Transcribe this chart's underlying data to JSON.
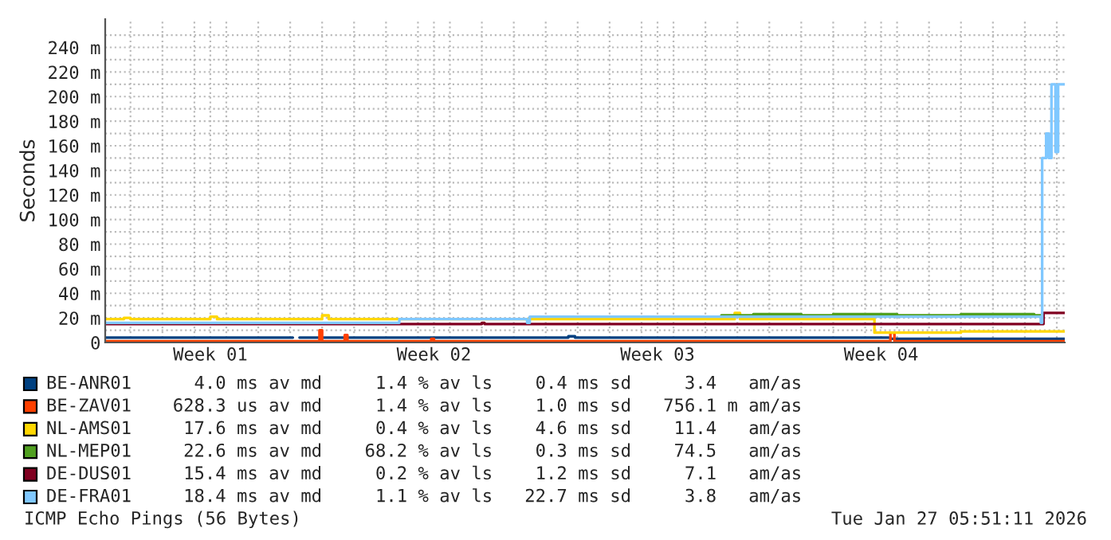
{
  "chart_data": {
    "type": "step",
    "ylabel": "Seconds",
    "xlim": [
      "2025-12-28T05:00",
      "2026-01-27T06:00"
    ],
    "ylim": [
      0,
      263
    ],
    "xticks": [
      {
        "value": "2025-12-31T12:00",
        "label": "Week 01"
      },
      {
        "value": "2026-01-07T12:00",
        "label": "Week 02"
      },
      {
        "value": "2026-01-14T12:00",
        "label": "Week 03"
      },
      {
        "value": "2026-01-21T12:00",
        "label": "Week 04"
      },
      {
        "value": "2025-12-29",
        "label": null
      },
      {
        "value": "2025-12-30",
        "label": null
      },
      {
        "value": "2025-12-31",
        "label": null
      },
      {
        "value": "2026-01-01",
        "label": null
      },
      {
        "value": "2026-01-02",
        "label": null
      },
      {
        "value": "2026-01-03",
        "label": null
      },
      {
        "value": "2026-01-04",
        "label": null
      },
      {
        "value": "2026-01-05",
        "label": null
      },
      {
        "value": "2026-01-06",
        "label": null
      },
      {
        "value": "2026-01-07",
        "label": null
      },
      {
        "value": "2026-01-08",
        "label": null
      },
      {
        "value": "2026-01-09",
        "label": null
      },
      {
        "value": "2026-01-10",
        "label": null
      },
      {
        "value": "2026-01-11",
        "label": null
      },
      {
        "value": "2026-01-12",
        "label": null
      },
      {
        "value": "2026-01-13",
        "label": null
      },
      {
        "value": "2026-01-14",
        "label": null
      },
      {
        "value": "2026-01-15",
        "label": null
      },
      {
        "value": "2026-01-16",
        "label": null
      },
      {
        "value": "2026-01-17",
        "label": null
      },
      {
        "value": "2026-01-18",
        "label": null
      },
      {
        "value": "2026-01-19",
        "label": null
      },
      {
        "value": "2026-01-20",
        "label": null
      },
      {
        "value": "2026-01-21",
        "label": null
      },
      {
        "value": "2026-01-22",
        "label": null
      },
      {
        "value": "2026-01-23",
        "label": null
      },
      {
        "value": "2026-01-24",
        "label": null
      },
      {
        "value": "2026-01-25",
        "label": null
      },
      {
        "value": "2026-01-26",
        "label": null
      },
      {
        "value": "2026-01-27",
        "label": null
      }
    ],
    "yticks": [
      0,
      {
        "value": 20,
        "label": "20 m"
      },
      {
        "value": 40,
        "label": "40 m"
      },
      {
        "value": 60,
        "label": "60 m"
      },
      {
        "value": 80,
        "label": "80 m"
      },
      {
        "value": 100,
        "label": "100 m"
      },
      {
        "value": 120,
        "label": "120 m"
      },
      {
        "value": 140,
        "label": "140 m"
      },
      {
        "value": 160,
        "label": "160 m"
      },
      {
        "value": 180,
        "label": "180 m"
      },
      {
        "value": 200,
        "label": "200 m"
      },
      {
        "value": 220,
        "label": "220 m"
      },
      {
        "value": 240,
        "label": "240 m"
      },
      {
        "value": 10,
        "label": null
      },
      {
        "value": 30,
        "label": null
      },
      {
        "value": 50,
        "label": null
      },
      {
        "value": 70,
        "label": null
      },
      {
        "value": 90,
        "label": null
      },
      {
        "value": 110,
        "label": null
      },
      {
        "value": 130,
        "label": null
      },
      {
        "value": 150,
        "label": null
      },
      {
        "value": 170,
        "label": null
      },
      {
        "value": 190,
        "label": null
      },
      {
        "value": 210,
        "label": null
      },
      {
        "value": 230,
        "label": null
      },
      {
        "value": 250,
        "label": null
      }
    ],
    "grid": true,
    "legend": "bottom",
    "marker": "none",
    "line_style": "solid",
    "series": [
      {
        "name": "BE-ANR01",
        "color": "#004080",
        "x": [
          "2025-12-28T05:00",
          "2026-01-03T00:00",
          "2026-01-03T02:00",
          "2026-01-03T07:00",
          "2026-01-11T14:00",
          "2026-01-11T17:00",
          "2026-01-11T22:00",
          "2026-01-21T19:00",
          "2026-01-27T06:00"
        ],
        "values": [
          4,
          4,
          null,
          4,
          4,
          5,
          4,
          3,
          3
        ]
      },
      {
        "name": "BE-ZAV01",
        "color": "#ff4000",
        "x": [
          "2025-12-28T05:00",
          "2026-01-03T19:00",
          "2026-01-03T22:00",
          "2026-01-04T00:00",
          "2026-01-04T14:00",
          "2026-01-04T17:00",
          "2026-01-04T19:00",
          "2026-01-07T07:00",
          "2026-01-07T10:00",
          "2026-01-07T12:00",
          "2026-01-21T17:00",
          "2026-01-21T19:00",
          "2026-01-21T22:00",
          "2026-01-27T06:00"
        ],
        "values": [
          1,
          1,
          10,
          1,
          1,
          6,
          1,
          1,
          3,
          1,
          1,
          8,
          1,
          1
        ]
      },
      {
        "name": "NL-AMS01",
        "color": "#ffd700",
        "x": [
          "2025-12-28T05:00",
          "2025-12-28T19:00",
          "2025-12-29T00:00",
          "2025-12-31T12:00",
          "2025-12-31T17:00",
          "2026-01-04T00:00",
          "2026-01-04T05:00",
          "2026-01-16T18:00",
          "2026-01-16T22:00",
          "2026-01-17T02:00",
          "2026-01-21T05:00",
          "2026-01-21T07:00",
          "2026-01-24T00:00",
          "2026-01-27T06:00"
        ],
        "values": [
          19,
          20,
          19,
          21,
          19,
          22,
          19,
          19,
          24,
          19,
          19,
          8,
          9,
          9
        ]
      },
      {
        "name": "NL-MEP01",
        "color": "#50a020",
        "x": [
          "2026-01-16T12:00",
          "2026-01-17T12:00",
          "2026-01-19T00:00",
          "2026-01-20T00:00",
          "2026-01-22T00:00",
          "2026-01-24T00:00",
          "2026-01-26T07:00",
          "2026-01-26T14:00"
        ],
        "values": [
          22,
          23,
          22,
          23,
          22,
          23,
          22,
          22
        ]
      },
      {
        "name": "DE-DUS01",
        "color": "#800020",
        "x": [
          "2025-12-28T05:00",
          "2026-01-09T00:00",
          "2026-01-09T02:00",
          "2026-01-26T12:00",
          "2026-01-26T14:00",
          "2026-01-27T06:00"
        ],
        "values": [
          15,
          16,
          15,
          15,
          24,
          24
        ]
      },
      {
        "name": "DE-FRA01",
        "color": "#80c8ff",
        "x": [
          "2025-12-28T05:00",
          "2026-01-06T07:00",
          "2026-01-06T10:00",
          "2026-01-10T10:00",
          "2026-01-10T12:00",
          "2026-01-26T12:00",
          "2026-01-26T13:00",
          "2026-01-26T16:00",
          "2026-01-26T18:00",
          "2026-01-26T20:00",
          "2026-01-26T23:00",
          "2026-01-27T01:00",
          "2026-01-27T06:00"
        ],
        "values": [
          16,
          16,
          19,
          16,
          21,
          16,
          150,
          170,
          150,
          210,
          155,
          210,
          210
        ]
      }
    ],
    "annotations": [
      "    4.0 ms av md     1.4 % av ls    0.4 ms sd     3.4   am/as",
      "  628.3 us av md     1.4 % av ls    1.0 ms sd   756.1 m am/as",
      "   17.6 ms av md     0.4 % av ls    4.6 ms sd    11.4   am/as",
      "   22.6 ms av md    68.2 % av ls    0.3 ms sd    74.5   am/as",
      "   15.4 ms av md     0.2 % av ls    1.2 ms sd     7.1   am/as",
      "   18.4 ms av md     1.1 % av ls   22.7 ms sd     3.8   am/as",
      "ICMP Echo Pings (56 Bytes)",
      "Tue Jan 27 05:51:11 2026"
    ]
  }
}
